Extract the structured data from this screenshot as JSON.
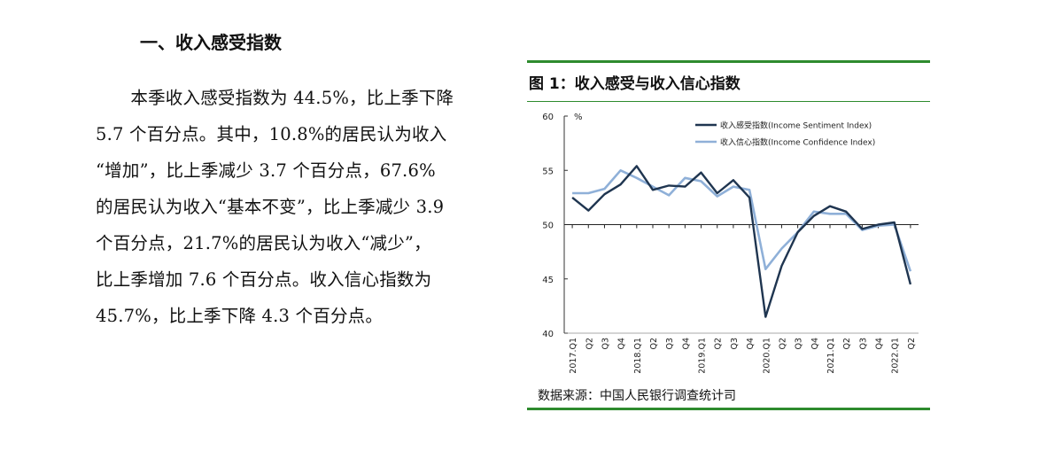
{
  "heading": "一、收入感受指数",
  "paragraph_lines": [
    "　　本季收入感受指数为 44.5%，比上季下降",
    "5.7 个百分点。其中，10.8%的居民认为收入",
    "“增加”，比上季减少 3.7 个百分点，67.6%",
    "的居民认为收入“基本不变”，比上季减少 3.9",
    "个百分点，21.7%的居民认为收入“减少”，",
    "比上季增加 7.6 个百分点。收入信心指数为",
    "45.7%，比上季下降 4.3 个百分点。"
  ],
  "figure": {
    "title": "图 1：收入感受与收入信心指数",
    "source": "数据来源：中国人民银行调查统计司"
  },
  "colors": {
    "rule": "#2e8b2e",
    "series1": "#1f3550",
    "series2": "#8fb0d8"
  },
  "chart_data": {
    "type": "line",
    "unit_label": "%",
    "ylim": [
      40,
      60
    ],
    "yticks": [
      40,
      45,
      50,
      55,
      60
    ],
    "reference_line": 50,
    "legend_position": "top-right",
    "x_tick_labels": [
      "2017.Q1",
      "Q2",
      "Q3",
      "Q4",
      "2018.Q1",
      "Q2",
      "Q3",
      "Q4",
      "2019.Q1",
      "Q2",
      "Q3",
      "Q4",
      "2020.Q1",
      "Q2",
      "Q3",
      "Q4",
      "2021.Q1",
      "Q2",
      "Q3",
      "Q4",
      "2022.Q1",
      "Q2"
    ],
    "series": [
      {
        "name": "收入感受指数(Income Sentiment Index)",
        "values": [
          52.5,
          51.3,
          52.8,
          53.7,
          55.4,
          53.2,
          53.6,
          53.5,
          54.8,
          52.9,
          54.1,
          52.5,
          41.5,
          46.2,
          49.3,
          50.8,
          51.7,
          51.2,
          49.6,
          50.0,
          50.2,
          44.5
        ]
      },
      {
        "name": "收入信心指数(Income Confidence Index)",
        "values": [
          52.9,
          52.9,
          53.3,
          55.0,
          54.3,
          53.5,
          52.7,
          54.3,
          54.0,
          52.6,
          53.5,
          53.2,
          45.9,
          47.8,
          49.3,
          51.2,
          51.0,
          51.0,
          49.5,
          49.9,
          50.0,
          45.7
        ]
      }
    ]
  }
}
